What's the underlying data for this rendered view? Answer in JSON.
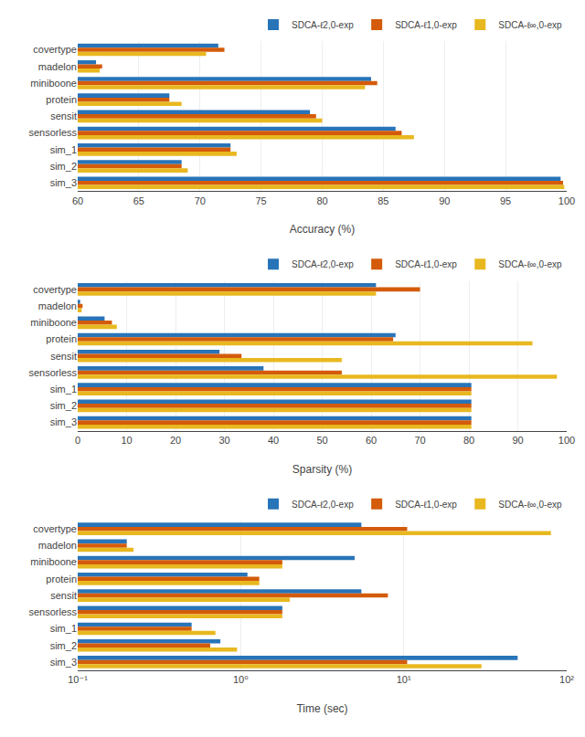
{
  "chart_data": [
    {
      "type": "bar",
      "orientation": "horizontal",
      "categories": [
        "covertype",
        "madelon",
        "miniboone",
        "protein",
        "sensit",
        "sensorless",
        "sim_1",
        "sim_2",
        "sim_3"
      ],
      "series": [
        {
          "name": "SDCA-ℓ2,0-exp",
          "color": "#2874b8",
          "values": [
            71.5,
            61.5,
            84.0,
            67.5,
            79.0,
            86.0,
            72.5,
            68.5,
            99.5
          ]
        },
        {
          "name": "SDCA-ℓ1,0-exp",
          "color": "#d45b0a",
          "values": [
            72.0,
            62.0,
            84.5,
            67.5,
            79.5,
            86.5,
            72.5,
            68.5,
            99.7
          ]
        },
        {
          "name": "SDCA-ℓ∞,0-exp",
          "color": "#e8b820",
          "values": [
            70.5,
            61.8,
            83.5,
            68.5,
            80.0,
            87.5,
            73.0,
            69.0,
            99.8
          ]
        }
      ],
      "x_label": "Accuracy (%)",
      "xlim": [
        60,
        100
      ],
      "xticks": [
        60,
        65,
        70,
        75,
        80,
        85,
        90,
        95,
        100
      ],
      "grid": true,
      "legend": "top"
    },
    {
      "type": "bar",
      "orientation": "horizontal",
      "categories": [
        "covertype",
        "madelon",
        "miniboone",
        "protein",
        "sensit",
        "sensorless",
        "sim_1",
        "sim_2",
        "sim_3"
      ],
      "series": [
        {
          "name": "SDCA-ℓ2,0-exp",
          "color": "#2874b8",
          "values": [
            61.0,
            0.5,
            5.5,
            65.0,
            29.0,
            38.0,
            80.5,
            80.5,
            80.5
          ]
        },
        {
          "name": "SDCA-ℓ1,0-exp",
          "color": "#d45b0a",
          "values": [
            70.0,
            1.0,
            7.0,
            64.5,
            33.5,
            54.0,
            80.5,
            80.5,
            80.5
          ]
        },
        {
          "name": "SDCA-ℓ∞,0-exp",
          "color": "#e8b820",
          "values": [
            61.0,
            0.8,
            8.0,
            93.0,
            54.0,
            98.0,
            80.5,
            80.5,
            80.5
          ]
        }
      ],
      "x_label": "Sparsity (%)",
      "xlim": [
        0,
        100
      ],
      "xticks": [
        0,
        10,
        20,
        30,
        40,
        50,
        60,
        70,
        80,
        90,
        100
      ],
      "grid": true,
      "legend": "top"
    },
    {
      "type": "bar",
      "orientation": "horizontal",
      "categories": [
        "covertype",
        "madelon",
        "miniboone",
        "protein",
        "sensit",
        "sensorless",
        "sim_1",
        "sim_2",
        "sim_3"
      ],
      "series": [
        {
          "name": "SDCA-ℓ2,0-exp",
          "color": "#2874b8",
          "values": [
            5.5,
            0.2,
            5.0,
            1.1,
            5.5,
            1.8,
            0.5,
            0.75,
            50.0
          ]
        },
        {
          "name": "SDCA-ℓ1,0-exp",
          "color": "#d45b0a",
          "values": [
            10.5,
            0.2,
            1.8,
            1.3,
            8.0,
            1.8,
            0.5,
            0.65,
            10.5
          ]
        },
        {
          "name": "SDCA-ℓ∞,0-exp",
          "color": "#e8b820",
          "values": [
            80.0,
            0.22,
            1.8,
            1.3,
            2.0,
            1.8,
            0.7,
            0.95,
            30.0
          ]
        }
      ],
      "x_label": "Time (sec)",
      "log": "x",
      "xlim": [
        0.1,
        100
      ],
      "xticks": [
        {
          "value": 0.1,
          "label": "10⁻¹"
        },
        {
          "value": 1,
          "label": "10⁰"
        },
        {
          "value": 10,
          "label": "10¹"
        },
        {
          "value": 100,
          "label": "10²"
        }
      ],
      "grid": true,
      "legend": "top"
    }
  ]
}
